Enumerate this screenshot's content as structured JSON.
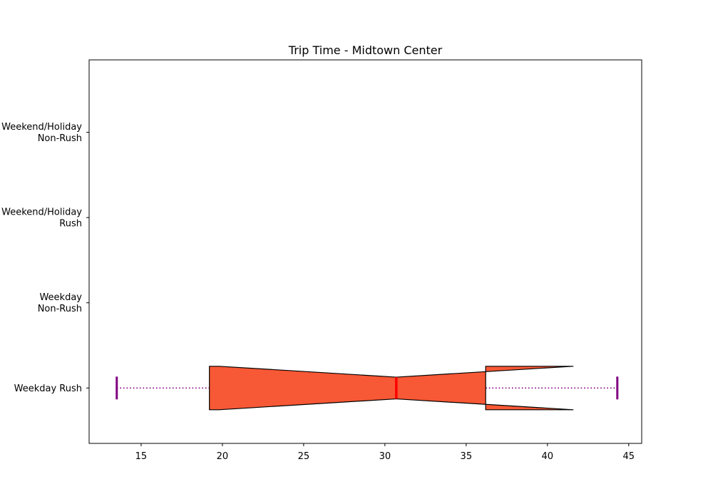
{
  "chart_data": {
    "type": "boxplot",
    "orientation": "horizontal",
    "title": "Trip Time - Midtown Center",
    "xlim": [
      11.8,
      45.8
    ],
    "xticks": [
      15,
      20,
      25,
      30,
      35,
      40,
      45
    ],
    "categories": [
      "Weekday Rush",
      "Weekday\nNon-Rush",
      "Weekend/Holiday\nRush",
      "Weekend/Holiday\nNon-Rush"
    ],
    "boxes": [
      {
        "category": "Weekday Rush",
        "whisker_low": 13.5,
        "q1": 19.2,
        "median": 30.7,
        "q3": 36.2,
        "whisker_high": 44.3,
        "notch_low": 19.8,
        "notch_high": 41.6,
        "notched": true
      }
    ],
    "colors": {
      "box_fill": "#f75835",
      "box_edge": "#000000",
      "median": "#ff0000",
      "whisker": "#800080"
    },
    "grid": false
  }
}
